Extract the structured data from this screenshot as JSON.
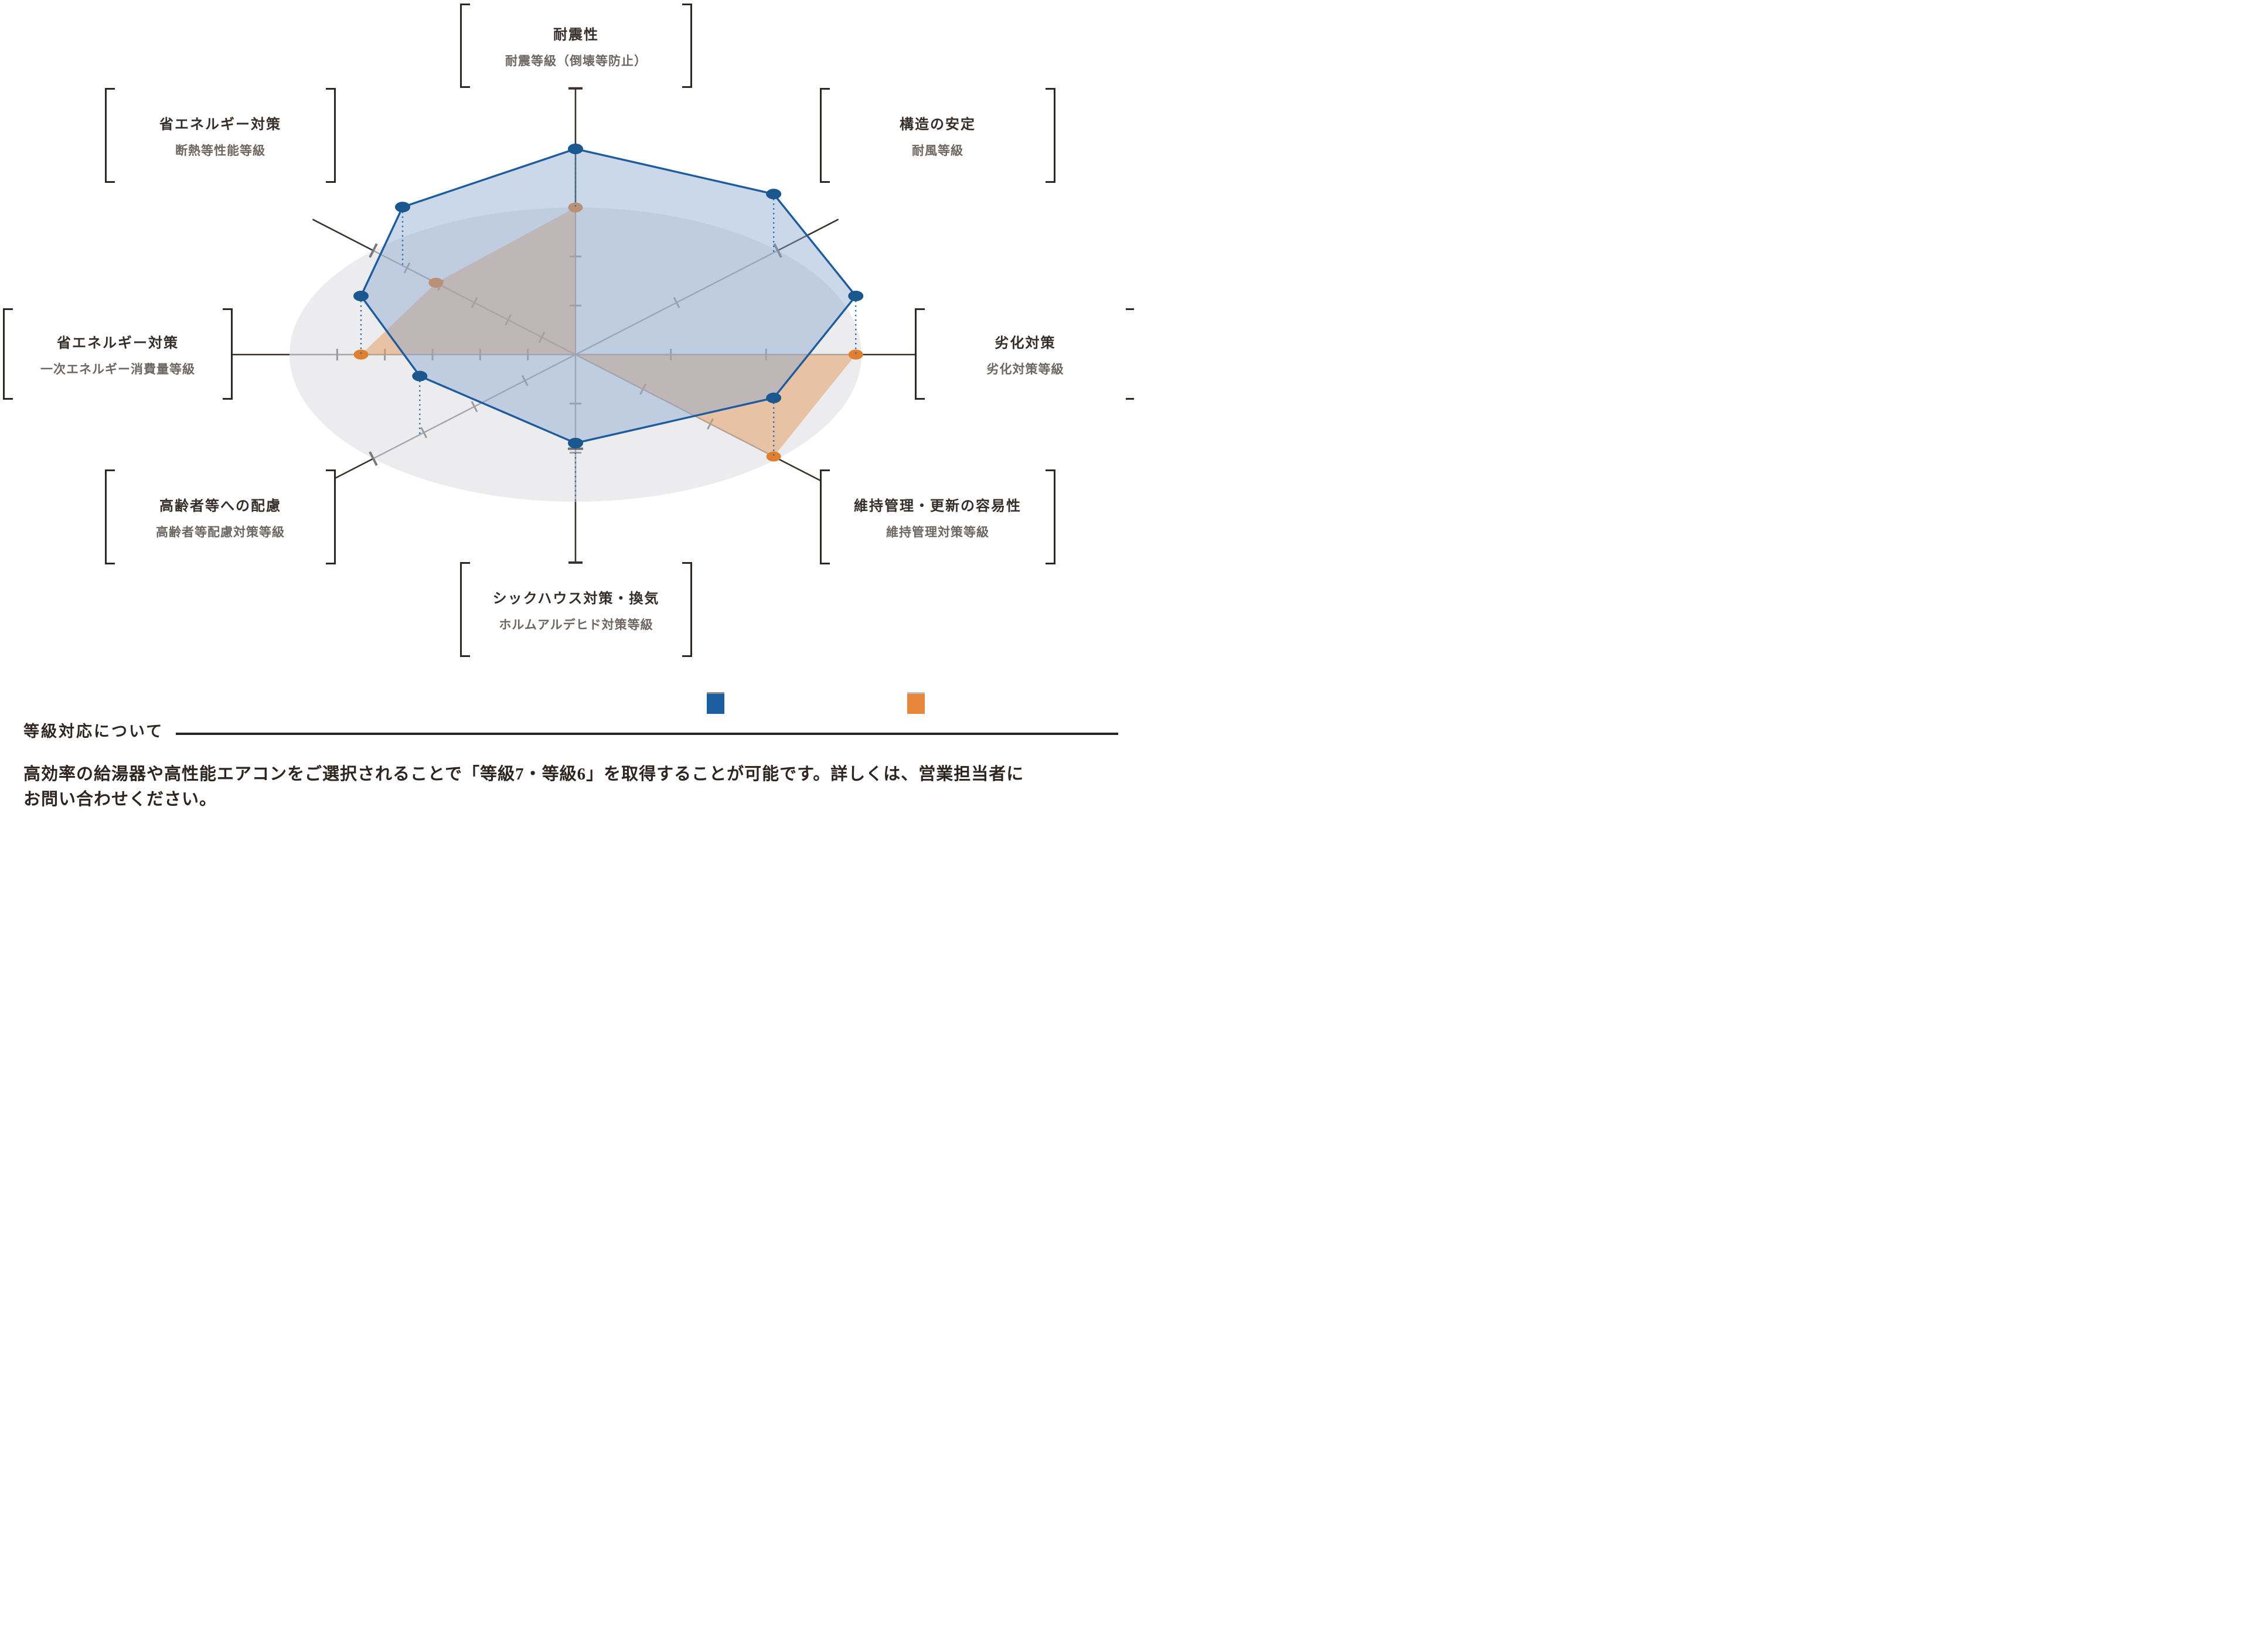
{
  "chart_data": {
    "type": "radar",
    "style": "3d-tilted-ellipse",
    "value_scale": "fraction of base-ellipse radius (0-1) per axis",
    "axes": [
      {
        "id": "seismic",
        "position": "top",
        "label": "耐震性",
        "sublabel": "耐震等級（倒壊等防止）",
        "angle": 90,
        "divisions": 3,
        "blue": 1.0,
        "orange": 1.0
      },
      {
        "id": "structure-wind",
        "position": "top-right",
        "label": "構造の安定",
        "sublabel": "耐風等級",
        "angle": 45,
        "divisions": 2,
        "blue": 0.98,
        "orange": 0,
        "edge_tick": 1
      },
      {
        "id": "deterioration",
        "position": "right",
        "label": "劣化対策",
        "sublabel": "劣化対策等級",
        "angle": 0,
        "divisions": 3,
        "blue": 0.98,
        "orange": 0.98
      },
      {
        "id": "maintenance",
        "position": "bottom-right",
        "label": "維持管理・更新の容易性",
        "sublabel": "維持管理対策等級",
        "angle": 315,
        "divisions": 3,
        "blue": 0.98,
        "orange": 0.98
      },
      {
        "id": "sick-house",
        "position": "bottom",
        "label": "シックハウス対策・換気",
        "sublabel": "ホルムアルデヒド対策等級",
        "angle": 270,
        "divisions": 3,
        "blue": 1.0,
        "orange": 0,
        "dark_tick": 0.64
      },
      {
        "id": "elderly",
        "position": "bottom-left",
        "label": "高齢者等への配慮",
        "sublabel": "高齢者等配慮対策等級",
        "angle": 225,
        "divisions": 4,
        "blue": 0.77,
        "orange": 0,
        "edge_tick": 1
      },
      {
        "id": "energy-primary",
        "position": "left",
        "label": "省エネルギー対策",
        "sublabel": "一次エネルギー消費量等級",
        "angle": 180,
        "divisions": 6,
        "blue": 0.75,
        "orange": 0.75
      },
      {
        "id": "insulation",
        "position": "top-left",
        "label": "省エネルギー対策",
        "sublabel": "断熱等性能等級",
        "angle": 135,
        "divisions": 6,
        "blue": 0.855,
        "orange": 0.69,
        "edge_tick": 1
      }
    ],
    "series": [
      {
        "name": "raised-blue",
        "stroke": "#1c5c9f",
        "fill": "rgba(140,168,207,0.45)",
        "dot": "#1a578f",
        "elevated": true
      },
      {
        "name": "base-orange",
        "stroke": "none",
        "fill": "rgba(226,152,92,0.50)",
        "dot": "#e07f2e",
        "elevated": false
      }
    ],
    "base_ellipse_color": "#ececee",
    "axis_color_inner": "#a6a6a6",
    "axis_color_outer": "#3a312b",
    "tick_color": "#9b9b9b",
    "drop_line_color": "#2a6fad",
    "legend": [
      {
        "swatch": "#1c5c9f"
      },
      {
        "swatch": "#e8873c"
      }
    ]
  },
  "note": {
    "heading": "等級対応について",
    "body_line1": "高効率の給湯器や高性能エアコンをご選択されることで「等級7・等級6」を取得することが可能です。詳しくは、営業担当者に",
    "body_line2": "お問い合わせください。"
  }
}
